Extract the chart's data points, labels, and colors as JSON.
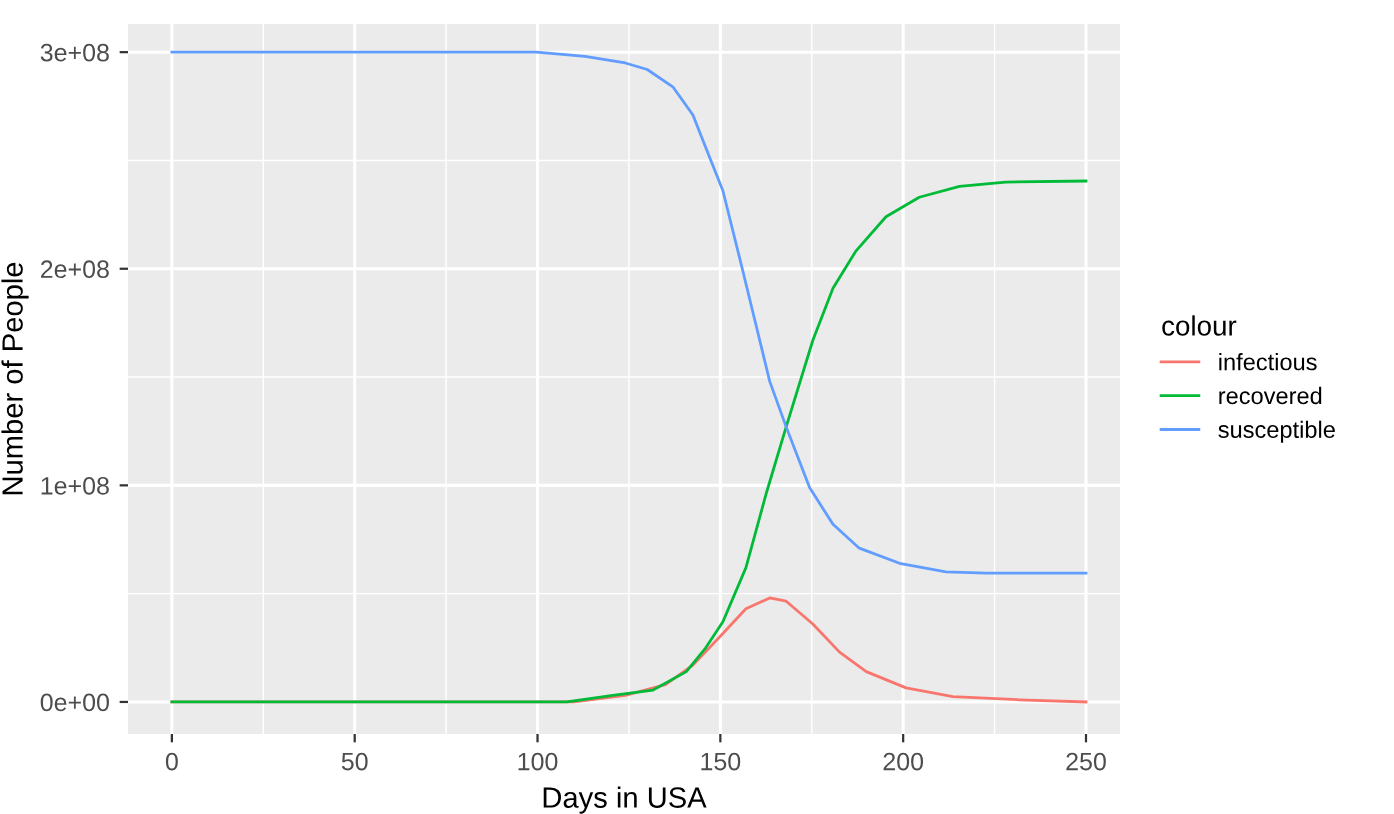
{
  "chart_data": {
    "type": "line",
    "xlabel": "Days in USA",
    "ylabel": "Number of People",
    "legend_title": "colour",
    "legend": "right",
    "grid": true,
    "xlim": [
      -12,
      259.3
    ],
    "xticks": [
      0,
      50,
      100,
      150,
      200,
      250
    ],
    "ylim": [
      -14800000.0,
      313000000.0
    ],
    "yticks": [
      {
        "value": 0,
        "label": "0e+00"
      },
      {
        "value": 100000000.0,
        "label": "1e+08"
      },
      {
        "value": 200000000.0,
        "label": "2e+08"
      },
      {
        "value": 300000000.0,
        "label": "3e+08"
      }
    ],
    "series": [
      {
        "name": "infectious",
        "color": "#f8766d",
        "x": [
          0,
          110,
          124,
          135,
          142.5,
          149.8,
          157,
          163.5,
          168,
          175.3,
          182.6,
          189.9,
          200.8,
          213.6,
          231.8,
          250
        ],
        "values": [
          0,
          0,
          3000000.0,
          8000000.0,
          17000000.0,
          30000000.0,
          43000000.0,
          48000000.0,
          46500000.0,
          36000000.0,
          23000000.0,
          14000000.0,
          6500000.0,
          2500000.0,
          1000000.0,
          0
        ]
      },
      {
        "name": "recovered",
        "color": "#00ba38",
        "x": [
          0,
          108,
          120.6,
          131.6,
          140.7,
          146,
          150.7,
          157,
          162.5,
          168,
          175.3,
          180.8,
          187,
          195.3,
          204.4,
          215.4,
          228,
          250
        ],
        "values": [
          0,
          0,
          3000000.0,
          5500000.0,
          14000000.0,
          25000000.0,
          37000000.0,
          62000000.0,
          96000000.0,
          127000000.0,
          167000000.0,
          191000000.0,
          208000000.0,
          224000000.0,
          233000000.0,
          238000000.0,
          240000000.0,
          240500000.0
        ]
      },
      {
        "name": "susceptible",
        "color": "#619cff",
        "x": [
          0,
          99.7,
          113,
          124,
          130,
          137,
          142.5,
          146,
          150.7,
          156,
          163.5,
          168,
          174.4,
          180.8,
          188,
          199,
          211.7,
          222.7,
          250
        ],
        "values": [
          300000000.0,
          300000000.0,
          298000000.0,
          295000000.0,
          292000000.0,
          284000000.0,
          271000000.0,
          256000000.0,
          236000000.0,
          200000000.0,
          148000000.0,
          127000000.0,
          99000000.0,
          82000000.0,
          71000000.0,
          64000000.0,
          60000000.0,
          59500000.0,
          59500000.0
        ]
      }
    ]
  }
}
